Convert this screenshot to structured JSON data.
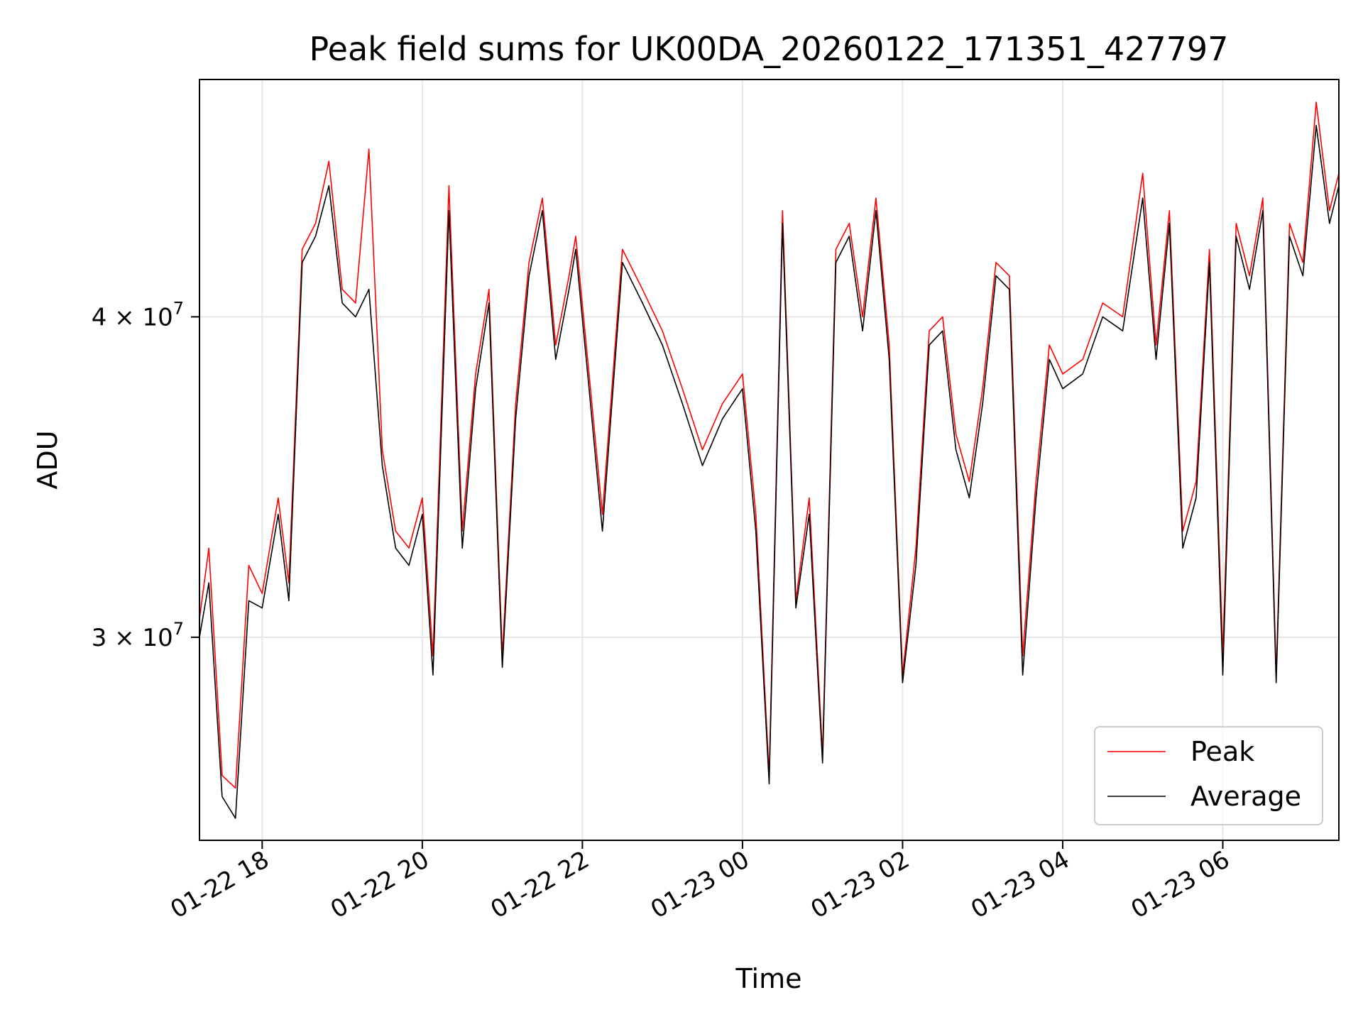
{
  "chart_data": {
    "type": "line",
    "title": "Peak field sums for UK00DA_20260122_171351_427797",
    "xlabel": "Time",
    "ylabel": "ADU",
    "yscale": "log",
    "grid": true,
    "legend_placement": "lower-right",
    "xlim": [
      "2026-01-22 17:13",
      "2026-01-23 07:27"
    ],
    "ylim": [
      25000000,
      49500000
    ],
    "x_ticks": [
      {
        "value": "2026-01-22 18:00",
        "label": "01-22 18"
      },
      {
        "value": "2026-01-22 20:00",
        "label": "01-22 20"
      },
      {
        "value": "2026-01-22 22:00",
        "label": "01-22 22"
      },
      {
        "value": "2026-01-23 00:00",
        "label": "01-23 00"
      },
      {
        "value": "2026-01-23 02:00",
        "label": "01-23 02"
      },
      {
        "value": "2026-01-23 04:00",
        "label": "01-23 04"
      },
      {
        "value": "2026-01-23 06:00",
        "label": "01-23 06"
      }
    ],
    "y_ticks": [
      {
        "value": 30000000,
        "mantissa": "3",
        "times": "×",
        "base": "10",
        "exponent": "7"
      },
      {
        "value": 40000000,
        "mantissa": "4",
        "times": "×",
        "base": "10",
        "exponent": "7"
      }
    ],
    "series": [
      {
        "name": "Peak",
        "color": "#ff0000",
        "x": [
          "2026-01-22 17:13",
          "2026-01-22 17:20",
          "2026-01-22 17:30",
          "2026-01-22 17:40",
          "2026-01-22 17:50",
          "2026-01-22 18:00",
          "2026-01-22 18:12",
          "2026-01-22 18:20",
          "2026-01-22 18:30",
          "2026-01-22 18:40",
          "2026-01-22 18:50",
          "2026-01-22 19:00",
          "2026-01-22 19:10",
          "2026-01-22 19:20",
          "2026-01-22 19:30",
          "2026-01-22 19:40",
          "2026-01-22 19:50",
          "2026-01-22 20:00",
          "2026-01-22 20:08",
          "2026-01-22 20:20",
          "2026-01-22 20:30",
          "2026-01-22 20:40",
          "2026-01-22 20:50",
          "2026-01-22 21:00",
          "2026-01-22 21:10",
          "2026-01-22 21:20",
          "2026-01-22 21:30",
          "2026-01-22 21:40",
          "2026-01-22 21:50",
          "2026-01-22 21:55",
          "2026-01-22 22:05",
          "2026-01-22 22:15",
          "2026-01-22 22:30",
          "2026-01-22 22:45",
          "2026-01-22 23:00",
          "2026-01-22 23:15",
          "2026-01-22 23:30",
          "2026-01-22 23:45",
          "2026-01-23 00:00",
          "2026-01-23 00:10",
          "2026-01-23 00:20",
          "2026-01-23 00:30",
          "2026-01-23 00:40",
          "2026-01-23 00:50",
          "2026-01-23 01:00",
          "2026-01-23 01:10",
          "2026-01-23 01:20",
          "2026-01-23 01:30",
          "2026-01-23 01:40",
          "2026-01-23 01:50",
          "2026-01-23 02:00",
          "2026-01-23 02:10",
          "2026-01-23 02:20",
          "2026-01-23 02:30",
          "2026-01-23 02:40",
          "2026-01-23 02:50",
          "2026-01-23 03:00",
          "2026-01-23 03:10",
          "2026-01-23 03:20",
          "2026-01-23 03:30",
          "2026-01-23 03:40",
          "2026-01-23 03:50",
          "2026-01-23 04:00",
          "2026-01-23 04:15",
          "2026-01-23 04:30",
          "2026-01-23 04:45",
          "2026-01-23 05:00",
          "2026-01-23 05:10",
          "2026-01-23 05:20",
          "2026-01-23 05:30",
          "2026-01-23 05:40",
          "2026-01-23 05:50",
          "2026-01-23 06:00",
          "2026-01-23 06:10",
          "2026-01-23 06:20",
          "2026-01-23 06:30",
          "2026-01-23 06:40",
          "2026-01-23 06:50",
          "2026-01-23 07:00",
          "2026-01-23 07:10",
          "2026-01-23 07:20",
          "2026-01-23 07:27"
        ],
        "y": [
          30500000,
          32500000,
          26500000,
          26200000,
          32000000,
          31200000,
          34000000,
          31500000,
          42500000,
          43500000,
          46000000,
          41000000,
          40500000,
          46500000,
          35500000,
          33000000,
          32500000,
          34000000,
          29500000,
          45000000,
          33000000,
          38000000,
          41000000,
          29500000,
          37000000,
          42000000,
          44500000,
          39000000,
          41500000,
          43000000,
          38000000,
          33500000,
          42500000,
          41000000,
          39500000,
          37500000,
          35500000,
          37000000,
          38000000,
          33500000,
          26500000,
          44000000,
          31000000,
          34000000,
          27000000,
          42500000,
          43500000,
          40000000,
          44500000,
          39000000,
          29000000,
          32500000,
          39500000,
          40000000,
          36000000,
          34500000,
          37500000,
          42000000,
          41500000,
          29500000,
          34500000,
          39000000,
          38000000,
          38500000,
          40500000,
          40000000,
          45500000,
          39000000,
          44000000,
          33000000,
          34500000,
          42500000,
          29500000,
          43500000,
          41500000,
          44500000,
          29000000,
          43500000,
          42000000,
          48500000,
          44000000,
          45500000
        ]
      },
      {
        "name": "Average",
        "color": "#000000",
        "x": [
          "2026-01-22 17:13",
          "2026-01-22 17:20",
          "2026-01-22 17:30",
          "2026-01-22 17:40",
          "2026-01-22 17:50",
          "2026-01-22 18:00",
          "2026-01-22 18:12",
          "2026-01-22 18:20",
          "2026-01-22 18:30",
          "2026-01-22 18:40",
          "2026-01-22 18:50",
          "2026-01-22 19:00",
          "2026-01-22 19:10",
          "2026-01-22 19:20",
          "2026-01-22 19:30",
          "2026-01-22 19:40",
          "2026-01-22 19:50",
          "2026-01-22 20:00",
          "2026-01-22 20:08",
          "2026-01-22 20:20",
          "2026-01-22 20:30",
          "2026-01-22 20:40",
          "2026-01-22 20:50",
          "2026-01-22 21:00",
          "2026-01-22 21:10",
          "2026-01-22 21:20",
          "2026-01-22 21:30",
          "2026-01-22 21:40",
          "2026-01-22 21:50",
          "2026-01-22 21:55",
          "2026-01-22 22:05",
          "2026-01-22 22:15",
          "2026-01-22 22:30",
          "2026-01-22 22:45",
          "2026-01-22 23:00",
          "2026-01-22 23:15",
          "2026-01-22 23:30",
          "2026-01-22 23:45",
          "2026-01-23 00:00",
          "2026-01-23 00:10",
          "2026-01-23 00:20",
          "2026-01-23 00:30",
          "2026-01-23 00:40",
          "2026-01-23 00:50",
          "2026-01-23 01:00",
          "2026-01-23 01:10",
          "2026-01-23 01:20",
          "2026-01-23 01:30",
          "2026-01-23 01:40",
          "2026-01-23 01:50",
          "2026-01-23 02:00",
          "2026-01-23 02:10",
          "2026-01-23 02:20",
          "2026-01-23 02:30",
          "2026-01-23 02:40",
          "2026-01-23 02:50",
          "2026-01-23 03:00",
          "2026-01-23 03:10",
          "2026-01-23 03:20",
          "2026-01-23 03:30",
          "2026-01-23 03:40",
          "2026-01-23 03:50",
          "2026-01-23 04:00",
          "2026-01-23 04:15",
          "2026-01-23 04:30",
          "2026-01-23 04:45",
          "2026-01-23 05:00",
          "2026-01-23 05:10",
          "2026-01-23 05:20",
          "2026-01-23 05:30",
          "2026-01-23 05:40",
          "2026-01-23 05:50",
          "2026-01-23 06:00",
          "2026-01-23 06:10",
          "2026-01-23 06:20",
          "2026-01-23 06:30",
          "2026-01-23 06:40",
          "2026-01-23 06:50",
          "2026-01-23 07:00",
          "2026-01-23 07:10",
          "2026-01-23 07:20",
          "2026-01-23 07:27"
        ],
        "y": [
          30000000,
          31500000,
          26000000,
          25500000,
          31000000,
          30800000,
          33500000,
          31000000,
          42000000,
          43000000,
          45000000,
          40500000,
          40000000,
          41000000,
          35000000,
          32500000,
          32000000,
          33500000,
          29000000,
          44000000,
          32500000,
          37500000,
          40500000,
          29200000,
          36500000,
          41500000,
          44000000,
          38500000,
          41000000,
          42500000,
          37500000,
          33000000,
          42000000,
          40500000,
          39000000,
          37000000,
          35000000,
          36500000,
          37500000,
          33000000,
          26300000,
          43500000,
          30800000,
          33500000,
          26800000,
          42000000,
          43000000,
          39500000,
          44000000,
          38500000,
          28800000,
          32000000,
          39000000,
          39500000,
          35500000,
          34000000,
          37000000,
          41500000,
          41000000,
          29000000,
          34000000,
          38500000,
          37500000,
          38000000,
          40000000,
          39500000,
          44500000,
          38500000,
          43500000,
          32500000,
          34000000,
          42000000,
          29000000,
          43000000,
          41000000,
          44000000,
          28800000,
          43000000,
          41500000,
          47500000,
          43500000,
          45000000
        ]
      }
    ]
  }
}
